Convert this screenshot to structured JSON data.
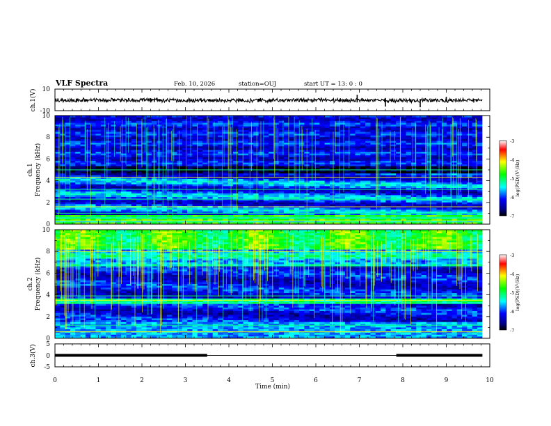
{
  "header": {
    "title": "VLF Spectra",
    "date": "Feb. 10, 2026",
    "station": "station=OUJ",
    "start_ut": "start  UT =   13: 0  : 0"
  },
  "chart_data": [
    {
      "type": "line",
      "panel": "ch1-waveform",
      "ylabel": "ch.1(V)",
      "ylim": [
        -10,
        10
      ],
      "yticks": [
        "10",
        "-10"
      ],
      "xlim": [
        0,
        10
      ],
      "x_end": 9.83
    },
    {
      "type": "heatmap",
      "panel": "ch1-spectrogram",
      "ylabel_top": "ch.1",
      "ylabel": "Frequency (kHz)",
      "ylim": [
        0,
        10
      ],
      "yticks": [
        "0",
        "2",
        "4",
        "6",
        "8",
        "10"
      ],
      "xlim": [
        0,
        10
      ],
      "colorbar": {
        "label": "log(PSD)(V²/Hz)",
        "range": [
          -7,
          -3
        ],
        "ticks": [
          "-3",
          "-4",
          "-5",
          "-6",
          "-7"
        ]
      },
      "bands_khz": [
        0.3,
        0.6,
        1.0,
        1.6,
        2.3,
        3.2,
        4.3,
        5.0
      ]
    },
    {
      "type": "heatmap",
      "panel": "ch2-spectrogram",
      "ylabel_top": "ch.2",
      "ylabel": "Frequency (kHz)",
      "ylim": [
        0,
        10
      ],
      "yticks": [
        "0",
        "2",
        "4",
        "6",
        "8",
        "10"
      ],
      "xlim": [
        0,
        10
      ],
      "colorbar": {
        "label": "log(PSD)(V²/Hz)",
        "range": [
          -7,
          -3
        ],
        "ticks": [
          "-3",
          "-4",
          "-5",
          "-6",
          "-7"
        ]
      },
      "bands_khz": [
        0.6,
        1.2,
        3.2,
        3.5,
        3.9,
        6.6,
        8.0
      ]
    },
    {
      "type": "line",
      "panel": "ch3-signal",
      "ylabel": "ch.3(V)",
      "ylim": [
        -5,
        5
      ],
      "yticks": [
        "5",
        "0",
        "-5"
      ],
      "xlim": [
        0,
        10
      ],
      "level_v": 0,
      "thick_segments_min": [
        [
          0,
          3.5
        ],
        [
          7.85,
          9.83
        ]
      ]
    }
  ],
  "xaxis": {
    "label": "Time (min)",
    "ticks": [
      "0",
      "1",
      "2",
      "3",
      "4",
      "5",
      "6",
      "7",
      "8",
      "9",
      "10"
    ]
  },
  "colors": {
    "frame": "#000000",
    "background": "#ffffff"
  }
}
